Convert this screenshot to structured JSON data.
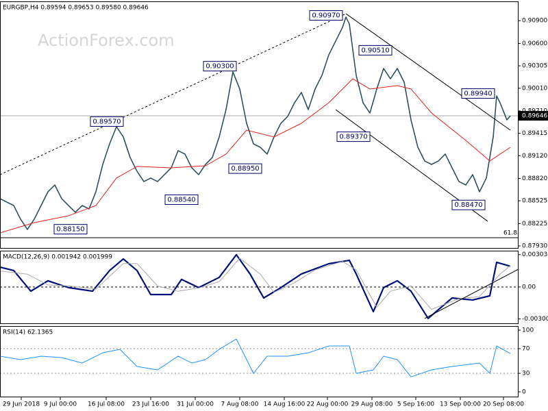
{
  "chart_data": [
    {
      "type": "line",
      "title": "EURGBP,H4  0.89594 0.89653 0.89580 0.89646",
      "watermark": "ActionForex.com",
      "xlim": [
        0,
        150
      ],
      "ylim": [
        0.87894,
        0.91155
      ],
      "yticks": [
        {
          "value": 0.909,
          "label": "0.90900"
        },
        {
          "value": 0.906,
          "label": "0.90600"
        },
        0.90305,
        {
          "value": 0.9001,
          "label": "0.90010"
        },
        {
          "value": 0.8971,
          "label": "0.89710"
        },
        0.89415,
        {
          "value": 0.8912,
          "label": "0.89120"
        },
        {
          "value": 0.8882,
          "label": "0.88820"
        },
        0.88525,
        0.88225,
        {
          "value": 0.8793,
          "label": "0.87930"
        }
      ],
      "series": [
        {
          "color": "#2f4f5f",
          "x": [
            0,
            2,
            4,
            6,
            8,
            10,
            12,
            14,
            16,
            18,
            20,
            22,
            24,
            26,
            28,
            30,
            32,
            34,
            36,
            38,
            40,
            42,
            44,
            46,
            48,
            50,
            52,
            54,
            56,
            58,
            60,
            62,
            64,
            66,
            68,
            70,
            72,
            74,
            76,
            78,
            80,
            82,
            84,
            86,
            88,
            90,
            92,
            94,
            96,
            98,
            100,
            101,
            102,
            104,
            106,
            108,
            110,
            112,
            114,
            116,
            118,
            120,
            122,
            124,
            126,
            128,
            130,
            132,
            134,
            136,
            138,
            140,
            142,
            144,
            145,
            146,
            148,
            149
          ],
          "values": [
            0.88554,
            0.88508,
            0.88463,
            0.88283,
            0.88147,
            0.88283,
            0.88463,
            0.88644,
            0.88734,
            0.88554,
            0.88463,
            0.88373,
            0.88463,
            0.88418,
            0.88644,
            0.89005,
            0.89276,
            0.89502,
            0.89367,
            0.89096,
            0.88915,
            0.88779,
            0.88825,
            0.88779,
            0.8887,
            0.8896,
            0.89186,
            0.89141,
            0.8896,
            0.8887,
            0.89005,
            0.89096,
            0.89367,
            0.89728,
            0.90225,
            0.89999,
            0.89547,
            0.89276,
            0.89231,
            0.89141,
            0.89367,
            0.89547,
            0.89638,
            0.89818,
            0.89954,
            0.89728,
            0.89999,
            0.90179,
            0.9045,
            0.90631,
            0.90812,
            0.90947,
            0.90857,
            0.90179,
            0.89818,
            0.89683,
            0.89999,
            0.9027,
            0.90134,
            0.9027,
            0.90089,
            0.89592,
            0.89231,
            0.8905,
            0.89005,
            0.8905,
            0.89141,
            0.8896,
            0.88779,
            0.88734,
            0.8887,
            0.88644,
            0.88825,
            0.89367,
            0.89908,
            0.89818,
            0.89592,
            0.89646
          ]
        },
        {
          "color": "#e0201a",
          "x": [
            0,
            10,
            20,
            28,
            34,
            40,
            50,
            60,
            66,
            72,
            80,
            88,
            96,
            103,
            108,
            116,
            120,
            126,
            136,
            143,
            149
          ],
          "values": [
            0.88102,
            0.88237,
            0.88328,
            0.88463,
            0.88825,
            0.88978,
            0.8896,
            0.88987,
            0.89141,
            0.89457,
            0.89367,
            0.89547,
            0.89818,
            0.90134,
            0.89999,
            0.90044,
            0.89999,
            0.89683,
            0.89321,
            0.8905,
            0.89231
          ]
        }
      ],
      "last_price": 0.89646,
      "fib_level": {
        "value": 0.88039,
        "label": "61.8"
      },
      "trendlines": [
        {
          "x": [
            0,
            101
          ],
          "values": [
            0.8887,
            0.90992
          ],
          "color": "#000000",
          "dashed": true
        },
        {
          "x": [
            101,
            149
          ],
          "values": [
            0.90992,
            0.89457
          ],
          "color": "#000000",
          "dashed": false
        },
        {
          "x": [
            98,
            142.4
          ],
          "values": [
            0.89728,
            0.88255
          ],
          "color": "#000000",
          "dashed": false
        }
      ],
      "annotations": [
        {
          "value": 0.9097,
          "label": "0.90970",
          "x": 100
        },
        {
          "value": 0.903,
          "label": "0.90300",
          "x": 69
        },
        {
          "value": 0.8957,
          "label": "0.89570",
          "x": 36
        },
        {
          "value": 0.8895,
          "label": "0.88950",
          "x": 76.4
        },
        {
          "value": 0.8854,
          "label": "0.88540",
          "x": 57.8
        },
        {
          "value": 0.8815,
          "label": "0.88150",
          "x": 25.4
        },
        {
          "value": 0.8937,
          "label": "0.89370",
          "x": 108
        },
        {
          "value": 0.9051,
          "label": "0.90510",
          "x": 114.4
        },
        {
          "value": 0.8994,
          "label": "0.89940",
          "x": 144.4
        },
        {
          "value": 0.8847,
          "label": "0.88470",
          "x": 141.6
        }
      ]
    },
    {
      "type": "line",
      "title": "MACD(12,26,9) 0.001942 0.001999",
      "xlim": [
        0,
        150
      ],
      "ylim": [
        -0.00347,
        0.0034
      ],
      "yticks": [
        0.003034,
        {
          "value": 0,
          "label": "0.00"
        },
        -0.003001
      ],
      "zero_line": 0,
      "series": [
        {
          "color": "#00107a",
          "x": [
            0,
            4,
            9,
            14,
            20,
            27,
            32,
            36,
            40,
            44,
            50,
            53,
            58,
            64,
            69,
            73,
            77,
            82,
            88,
            96,
            102,
            104,
            109,
            112,
            116,
            120,
            125,
            132,
            138,
            143,
            145,
            149
          ],
          "values": [
            0.00186,
            0.00154,
            -0.00039,
            0.00058,
            -6e-05,
            -0.00039,
            0.00154,
            0.00263,
            0.00154,
            -0.00071,
            -0.00071,
            0.00071,
            -6e-05,
            0.0009,
            0.00302,
            0.00122,
            -0.00103,
            -6e-05,
            0.00122,
            0.00218,
            0.0025,
            0.00122,
            -0.00231,
            -6e-05,
            0.00058,
            -0.00039,
            -0.00295,
            -0.00103,
            -0.00122,
            -0.00083,
            0.00231,
            0.00194
          ]
        },
        {
          "color": "#a8a8a8",
          "x": [
            0,
            8,
            14,
            20,
            28,
            36,
            40,
            46,
            52,
            58,
            64,
            70,
            76,
            80,
            86,
            92,
            100,
            104,
            110,
            114,
            120,
            126,
            134,
            140,
            146,
            149
          ],
          "values": [
            0.0015,
            0.0012,
            0.0002,
            0.0001,
            -0.0002,
            0.0022,
            0.0022,
            0.0001,
            -0.0004,
            -0.0001,
            0.0005,
            0.0027,
            0.0012,
            -0.0005,
            0.0004,
            0.0016,
            0.0024,
            0.0016,
            -0.0019,
            -0.0004,
            0.0001,
            -0.0021,
            -0.0011,
            -0.0009,
            0.0012,
            0.001999
          ]
        }
      ],
      "trendlines": [
        {
          "x": [
            124,
            151.4
          ],
          "values": [
            -0.00295,
            0.00167
          ],
          "color": "#000000",
          "dashed": false
        }
      ]
    },
    {
      "type": "line",
      "title": "RSI(14) 62.1365",
      "xlim": [
        0,
        150
      ],
      "ylim": [
        -8.9,
        106.7
      ],
      "yticks": [
        100,
        70,
        30,
        0
      ],
      "levels": [
        70,
        30
      ],
      "series": [
        {
          "color": "#1e90ff",
          "x": [
            0,
            6,
            12,
            18,
            24,
            30,
            35,
            40,
            46,
            52,
            56,
            60,
            64,
            69,
            74,
            78,
            84,
            90,
            96,
            102,
            104,
            109,
            112,
            116,
            120,
            126,
            132,
            140,
            143,
            145,
            149
          ],
          "values": [
            57.8,
            52.2,
            57.8,
            55.6,
            46.7,
            63.3,
            68.9,
            41.1,
            35.6,
            57.8,
            46.7,
            52.2,
            68.9,
            85.6,
            30,
            57.8,
            57.8,
            63.3,
            74.4,
            74.4,
            30,
            35.6,
            57.8,
            52.2,
            24.4,
            35.6,
            41.1,
            46.7,
            30,
            74.4,
            62.1365
          ]
        }
      ],
      "xticks": [
        {
          "value": 6.2,
          "label": "29 Jun 2018"
        },
        {
          "value": 17.6,
          "label": "9 Jul 00:00"
        },
        {
          "value": 31,
          "label": "16 Jul 08:00"
        },
        {
          "value": 44,
          "label": "23 Jul 16:00"
        },
        {
          "value": 57,
          "label": "31 Jul 00:00"
        },
        {
          "value": 70,
          "label": "7 Aug 08:00"
        },
        {
          "value": 83,
          "label": "14 Aug 16:00"
        },
        {
          "value": 95.6,
          "label": "22 Aug 00:00"
        },
        {
          "value": 108.6,
          "label": "29 Aug 08:00"
        },
        {
          "value": 121.4,
          "label": "5 Sep 16:00"
        },
        {
          "value": 134.4,
          "label": "13 Sep 00:00"
        },
        {
          "value": 147,
          "label": "20 Sep 08:00"
        }
      ]
    }
  ]
}
